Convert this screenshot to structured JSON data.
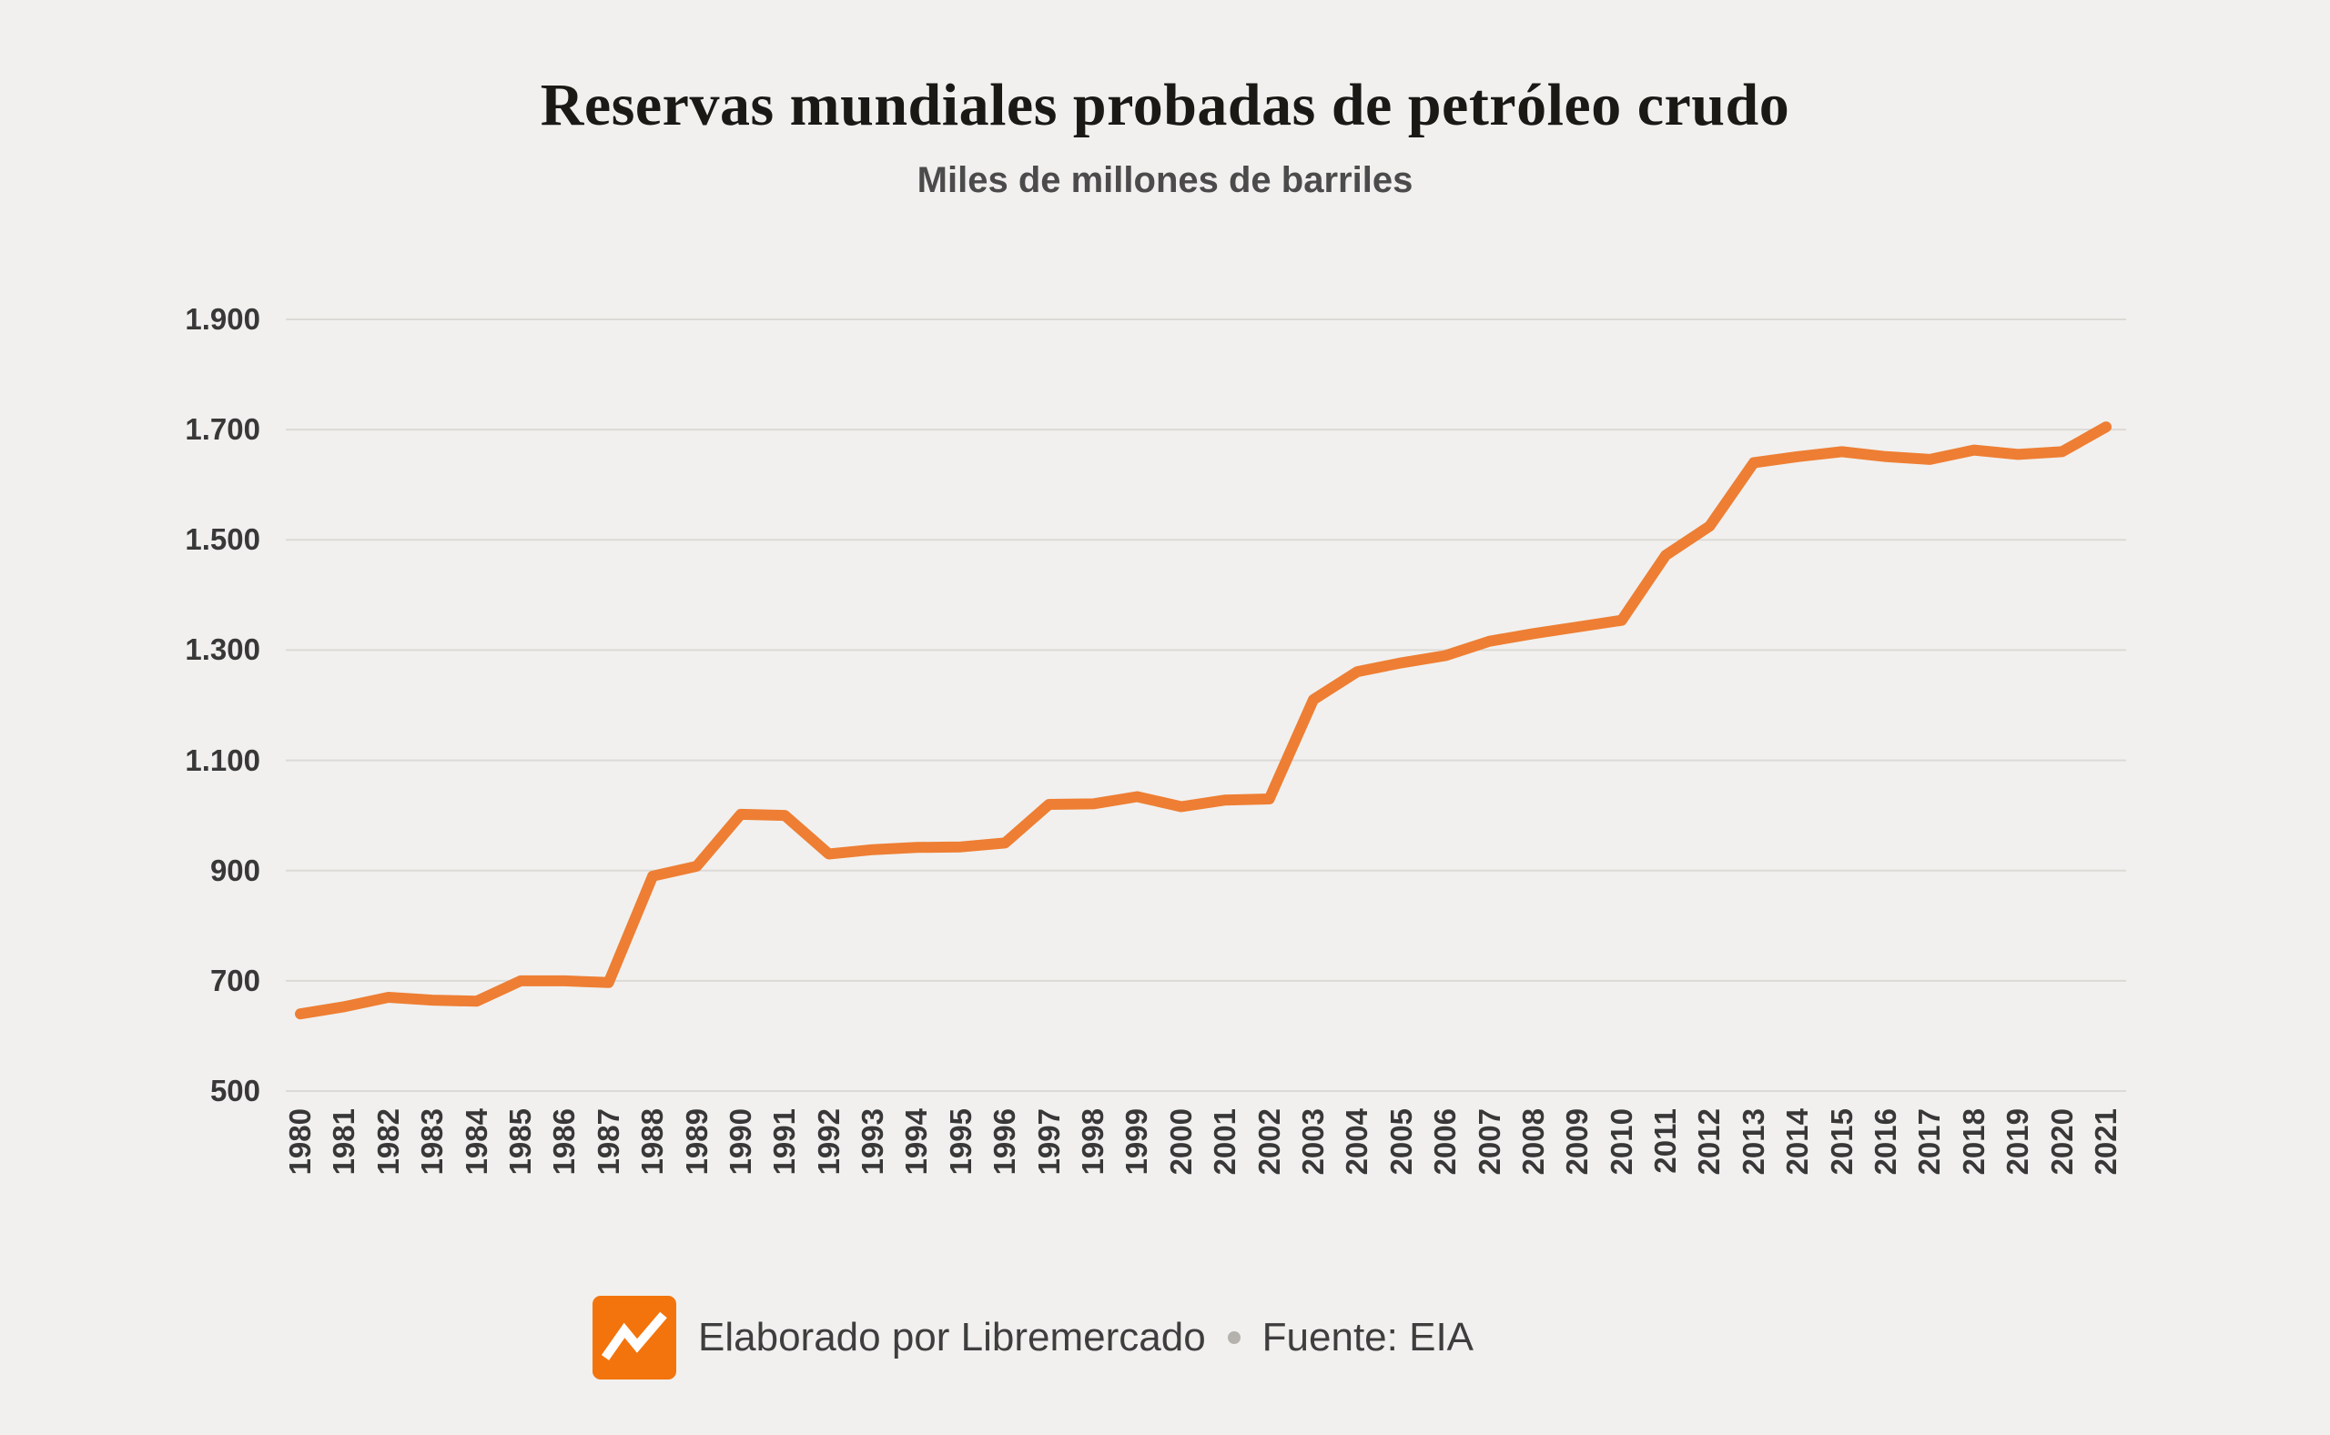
{
  "page": {
    "background": "#f1f0ee"
  },
  "header": {
    "title": "Reservas mundiales probadas de petróleo crudo",
    "subtitle": "Miles de millones de barriles"
  },
  "chart_data": {
    "type": "line",
    "title": "Reservas mundiales probadas de petróleo crudo",
    "subtitle": "Miles de millones de barriles",
    "xlabel": "",
    "ylabel": "",
    "x": [
      1980,
      1981,
      1982,
      1983,
      1984,
      1985,
      1986,
      1987,
      1988,
      1989,
      1990,
      1991,
      1992,
      1993,
      1994,
      1995,
      1996,
      1997,
      1998,
      1999,
      2000,
      2001,
      2002,
      2003,
      2004,
      2005,
      2006,
      2007,
      2008,
      2009,
      2010,
      2011,
      2012,
      2013,
      2014,
      2015,
      2016,
      2017,
      2018,
      2019,
      2020,
      2021
    ],
    "values": [
      640,
      653,
      670,
      665,
      663,
      700,
      700,
      697,
      890,
      908,
      1002,
      1000,
      930,
      938,
      942,
      943,
      950,
      1020,
      1021,
      1034,
      1016,
      1028,
      1030,
      1210,
      1261,
      1277,
      1290,
      1316,
      1330,
      1342,
      1354,
      1472,
      1525,
      1640,
      1651,
      1660,
      1651,
      1646,
      1663,
      1655,
      1660,
      1705
    ],
    "ylim": [
      500,
      1900
    ],
    "y_ticks": [
      500,
      700,
      900,
      1100,
      1300,
      1500,
      1700,
      1900
    ],
    "y_tick_labels": [
      "500",
      "700",
      "900",
      "1.100",
      "1.300",
      "1.500",
      "1.700",
      "1.900"
    ],
    "grid": "horizontal",
    "legend": "none",
    "line_color": "#ee7e33"
  },
  "footer": {
    "credit": "Elaborado por Libremercado",
    "source": "Fuente: EIA",
    "logo_color": "#f3740c",
    "separator_color": "#b5b2ae"
  }
}
